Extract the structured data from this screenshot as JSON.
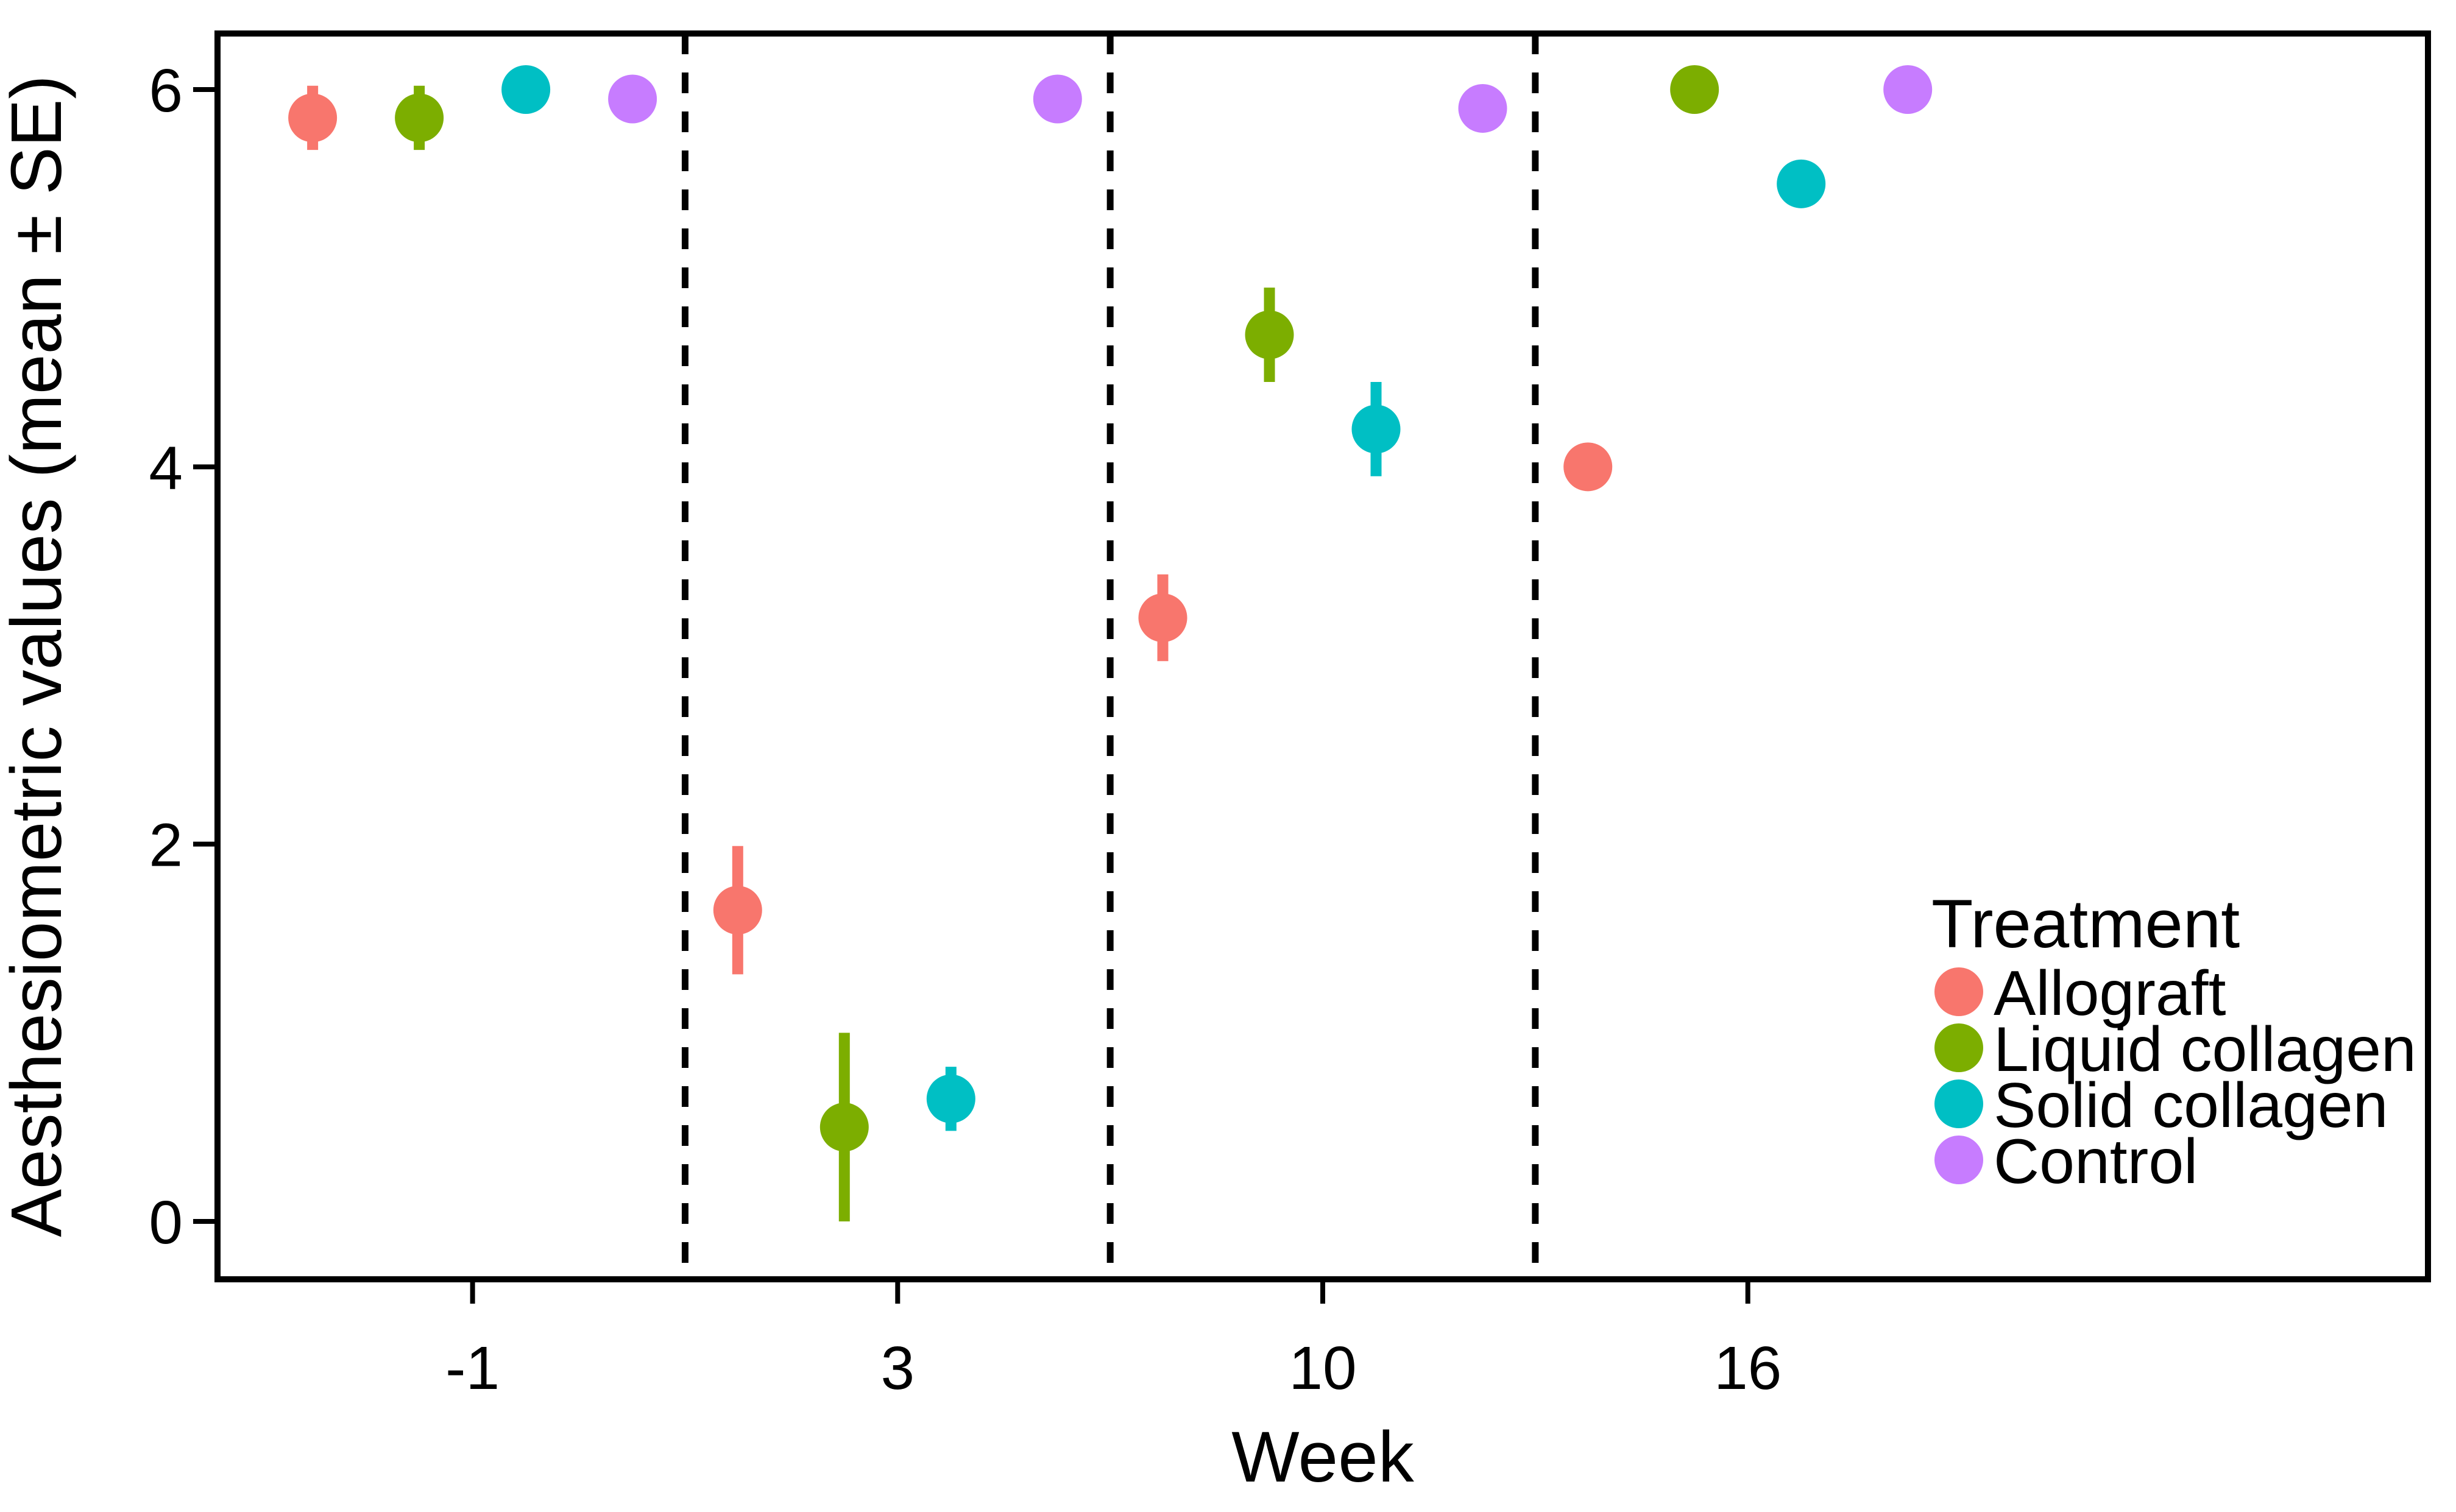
{
  "chart_data": {
    "type": "scatter",
    "title": "",
    "xlabel": "Week",
    "ylabel": "Aesthesiometric values (mean ± SE)",
    "categories": [
      "-1",
      "3",
      "10",
      "16"
    ],
    "yticks": [
      0,
      2,
      4,
      6
    ],
    "ylim": [
      0,
      6
    ],
    "grid": false,
    "point_style": "mean dot with vertical SE error bar (dodged groups)",
    "separators": "dashed vertical lines between week groups",
    "legend": {
      "title": "Treatment",
      "position": "inside bottom-right"
    },
    "series": [
      {
        "name": "Allograft",
        "color": "#F8766D",
        "means": [
          5.85,
          1.65,
          3.2,
          4.0
        ],
        "se": [
          0.17,
          0.34,
          0.23,
          0
        ]
      },
      {
        "name": "Liquid collagen",
        "color": "#7CAE00",
        "means": [
          5.85,
          0.5,
          4.7,
          6.0
        ],
        "se": [
          0.17,
          0.5,
          0.25,
          0
        ]
      },
      {
        "name": "Solid collagen",
        "color": "#00BFC4",
        "means": [
          6.0,
          0.65,
          4.2,
          5.5
        ],
        "se": [
          0.04,
          0.17,
          0.25,
          0
        ]
      },
      {
        "name": "Control",
        "color": "#C77CFF",
        "means": [
          5.95,
          5.95,
          5.9,
          6.0
        ],
        "se": [
          0,
          0,
          0,
          0
        ]
      }
    ]
  }
}
